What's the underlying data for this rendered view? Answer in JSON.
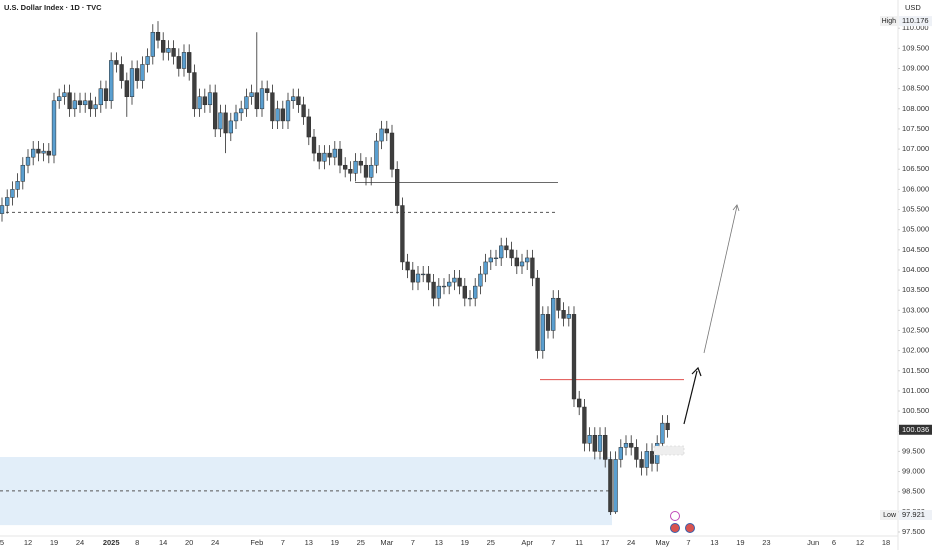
{
  "chart_data": {
    "type": "candlestick",
    "title": "U.S. Dollar Index · 1D · TVC",
    "currency": "USD",
    "categories": [
      "5",
      null,
      null,
      null,
      null,
      "12",
      null,
      null,
      null,
      null,
      "19",
      null,
      null,
      null,
      null,
      "24",
      null,
      null,
      null,
      null,
      null,
      "2025",
      null,
      null,
      null,
      null,
      "8",
      null,
      null,
      null,
      null,
      "14",
      null,
      null,
      null,
      null,
      "20",
      null,
      null,
      null,
      null,
      "24",
      null,
      null,
      null,
      null,
      null,
      null,
      null,
      "Feb",
      null,
      null,
      null,
      null,
      "7",
      null,
      null,
      null,
      null,
      "13",
      null,
      null,
      null,
      null,
      "19",
      null,
      null,
      null,
      null,
      "25",
      null,
      null,
      null,
      null,
      "Mar",
      null,
      null,
      null,
      null,
      "7",
      null,
      null,
      null,
      null,
      "13",
      null,
      null,
      null,
      null,
      "19",
      null,
      null,
      null,
      null,
      "25",
      null,
      null,
      null,
      null,
      null,
      null,
      "Apr",
      null,
      null,
      null,
      null,
      "7",
      null,
      null,
      null,
      null,
      "11",
      null,
      null,
      null,
      null,
      "17",
      null,
      null,
      null,
      null,
      "24",
      null,
      null,
      null,
      null,
      null,
      "May",
      null,
      null,
      null,
      null,
      "7",
      null,
      null,
      null,
      null,
      "13",
      null,
      null,
      null,
      null,
      "19",
      null,
      null,
      null,
      null,
      "23",
      null,
      null,
      null,
      null,
      null,
      null,
      null,
      null,
      "Jun",
      null,
      null,
      null,
      "6",
      null,
      null,
      null,
      null,
      "12",
      null,
      null,
      null,
      null,
      "18"
    ],
    "open": [
      105.4,
      105.6,
      105.8,
      106.0,
      106.2,
      106.6,
      106.8,
      107.0,
      106.9,
      106.95,
      106.85,
      108.2,
      108.3,
      108.4,
      108.0,
      108.2,
      108.1,
      108.2,
      108.0,
      108.1,
      108.5,
      108.2,
      109.2,
      109.1,
      108.7,
      108.3,
      109.0,
      108.7,
      109.1,
      109.3,
      109.9,
      109.7,
      109.4,
      109.5,
      109.3,
      109.0,
      109.4,
      108.9,
      108.0,
      108.3,
      108.1,
      108.4,
      107.5,
      107.9,
      107.4,
      107.7,
      107.9,
      108.0,
      108.3,
      108.4,
      108.0,
      108.5,
      108.4,
      107.7,
      108.0,
      107.7,
      108.2,
      108.3,
      108.1,
      107.8,
      107.3,
      106.9,
      106.7,
      106.9,
      106.8,
      107.0,
      106.6,
      106.5,
      106.4,
      106.7,
      106.6,
      106.3,
      106.6,
      107.2,
      107.5,
      107.4,
      106.5,
      105.6,
      104.2,
      104.0,
      103.7,
      103.9,
      103.9,
      103.7,
      103.3,
      103.6,
      103.6,
      103.7,
      103.8,
      103.6,
      103.3,
      103.3,
      103.6,
      103.9,
      104.2,
      104.3,
      104.3,
      104.6,
      104.5,
      104.3,
      104.1,
      104.2,
      104.3,
      103.8,
      102.0,
      102.9,
      102.5,
      103.3,
      103.0,
      102.8,
      102.9,
      100.8,
      100.6,
      99.7,
      99.9,
      99.5,
      99.9,
      99.3,
      98.0,
      99.3,
      99.6,
      99.7,
      99.6,
      99.3,
      99.1,
      99.5,
      99.2,
      99.7,
      100.2,
      null,
      null,
      null,
      null,
      null,
      null,
      null,
      null,
      null,
      null,
      null,
      null,
      null,
      null,
      null,
      null,
      null,
      null,
      null,
      null,
      null,
      null,
      null,
      null,
      null,
      null,
      null,
      null,
      null,
      null,
      null,
      null,
      null,
      null,
      null,
      null,
      null,
      null,
      null,
      null,
      null,
      null
    ],
    "high": [
      105.8,
      106.0,
      106.2,
      106.4,
      106.8,
      107.0,
      107.2,
      107.2,
      107.15,
      107.15,
      108.4,
      108.5,
      108.6,
      108.6,
      108.4,
      108.4,
      108.4,
      108.4,
      108.3,
      108.7,
      108.7,
      109.4,
      109.4,
      109.3,
      108.9,
      109.2,
      109.2,
      109.3,
      109.5,
      110.1,
      110.176,
      109.9,
      109.7,
      109.7,
      109.5,
      109.6,
      109.6,
      109.1,
      108.5,
      108.5,
      108.6,
      108.6,
      108.1,
      108.1,
      107.9,
      108.1,
      108.2,
      108.5,
      108.6,
      109.9,
      108.7,
      108.7,
      108.6,
      108.2,
      108.2,
      108.4,
      108.5,
      108.5,
      108.3,
      108.0,
      107.5,
      107.1,
      107.1,
      107.1,
      107.2,
      107.2,
      106.8,
      106.7,
      106.9,
      106.9,
      106.8,
      106.8,
      107.4,
      107.7,
      107.7,
      107.6,
      106.7,
      105.8,
      104.4,
      104.2,
      104.1,
      104.1,
      104.1,
      103.9,
      103.8,
      103.8,
      103.9,
      104.0,
      104.0,
      103.8,
      103.5,
      103.8,
      104.1,
      104.4,
      104.5,
      104.5,
      104.8,
      104.8,
      104.7,
      104.5,
      104.4,
      104.5,
      104.5,
      104.0,
      103.1,
      103.1,
      103.5,
      103.5,
      103.2,
      103.1,
      103.1,
      101.0,
      100.8,
      100.1,
      100.1,
      100.1,
      100.1,
      99.5,
      99.5,
      99.8,
      99.9,
      99.9,
      99.8,
      99.5,
      99.7,
      99.7,
      99.9,
      100.4,
      100.4,
      null,
      null,
      null,
      null,
      null,
      null,
      null,
      null,
      null,
      null,
      null,
      null,
      null,
      null,
      null,
      null,
      null,
      null,
      null,
      null,
      null,
      null,
      null,
      null,
      null,
      null,
      null,
      null,
      null,
      null,
      null,
      null,
      null,
      null,
      null,
      null,
      null,
      null,
      null,
      null,
      null,
      null
    ],
    "low": [
      105.2,
      105.4,
      105.6,
      105.8,
      106.0,
      106.4,
      106.6,
      106.7,
      106.7,
      106.65,
      106.65,
      108.0,
      108.1,
      107.8,
      107.8,
      107.9,
      107.9,
      107.8,
      107.8,
      107.9,
      108.0,
      108.0,
      108.9,
      108.5,
      107.8,
      108.1,
      108.5,
      108.5,
      108.9,
      109.1,
      109.5,
      109.2,
      109.2,
      109.1,
      108.8,
      108.8,
      108.7,
      107.8,
      107.8,
      107.9,
      107.9,
      107.3,
      107.3,
      106.9,
      107.2,
      107.5,
      107.7,
      107.8,
      108.1,
      107.8,
      107.8,
      108.2,
      107.5,
      107.5,
      107.5,
      107.5,
      108.0,
      107.9,
      107.6,
      107.1,
      106.7,
      106.5,
      106.5,
      106.6,
      106.6,
      106.4,
      106.3,
      106.2,
      106.2,
      106.4,
      106.1,
      106.1,
      106.4,
      107.0,
      107.2,
      106.3,
      105.4,
      104.0,
      103.8,
      103.5,
      103.5,
      103.7,
      103.5,
      103.1,
      103.1,
      103.4,
      103.4,
      103.5,
      103.4,
      103.1,
      103.1,
      103.1,
      103.4,
      103.7,
      104.0,
      104.1,
      104.1,
      104.3,
      104.1,
      103.9,
      103.9,
      104.0,
      103.6,
      101.8,
      101.8,
      102.3,
      102.3,
      102.8,
      102.6,
      102.6,
      100.6,
      100.4,
      99.5,
      99.5,
      99.3,
      99.3,
      99.1,
      97.921,
      97.95,
      99.1,
      99.4,
      99.4,
      99.1,
      98.9,
      98.9,
      99.0,
      99.0,
      99.5,
      99.84,
      null,
      null,
      null,
      null,
      null,
      null,
      null,
      null,
      null,
      null,
      null,
      null,
      null,
      null,
      null,
      null,
      null,
      null,
      null,
      null,
      null,
      null,
      null,
      null,
      null,
      null,
      null,
      null,
      null,
      null,
      null,
      null,
      null,
      null,
      null,
      null,
      null,
      null,
      null,
      null,
      null,
      null
    ],
    "close": [
      105.6,
      105.8,
      106.0,
      106.2,
      106.6,
      106.8,
      107.0,
      106.9,
      106.95,
      106.85,
      108.2,
      108.3,
      108.4,
      108.0,
      108.2,
      108.1,
      108.2,
      108.0,
      108.1,
      108.5,
      108.2,
      109.2,
      109.1,
      108.7,
      108.3,
      109.0,
      108.7,
      109.1,
      109.3,
      109.9,
      109.7,
      109.4,
      109.5,
      109.3,
      109.0,
      109.4,
      108.9,
      108.0,
      108.3,
      108.1,
      108.4,
      107.5,
      107.9,
      107.4,
      107.7,
      107.9,
      108.0,
      108.3,
      108.4,
      108.0,
      108.5,
      108.4,
      107.7,
      108.0,
      107.7,
      108.2,
      108.3,
      108.1,
      107.8,
      107.3,
      106.9,
      106.7,
      106.9,
      106.8,
      107.0,
      106.6,
      106.5,
      106.4,
      106.7,
      106.6,
      106.3,
      106.6,
      107.2,
      107.5,
      107.4,
      106.5,
      105.6,
      104.2,
      104.0,
      103.7,
      103.9,
      103.9,
      103.7,
      103.3,
      103.6,
      103.6,
      103.7,
      103.8,
      103.6,
      103.3,
      103.3,
      103.6,
      103.9,
      104.2,
      104.3,
      104.3,
      104.6,
      104.5,
      104.3,
      104.1,
      104.2,
      104.3,
      103.8,
      102.0,
      102.9,
      102.5,
      103.3,
      103.0,
      102.8,
      102.9,
      100.8,
      100.6,
      99.7,
      99.9,
      99.5,
      99.9,
      99.3,
      98.0,
      99.3,
      99.6,
      99.7,
      99.6,
      99.3,
      99.1,
      99.5,
      99.2,
      99.7,
      100.2,
      100.036,
      null,
      null,
      null,
      null,
      null,
      null,
      null,
      null,
      null,
      null,
      null,
      null,
      null,
      null,
      null,
      null,
      null,
      null,
      null,
      null,
      null,
      null,
      null,
      null,
      null,
      null,
      null,
      null,
      null,
      null,
      null,
      null,
      null,
      null,
      null,
      null,
      null,
      null,
      null,
      null,
      null,
      null
    ],
    "up_color": "#5a9fd0",
    "down_color": "#3e3e3e",
    "ylim": [
      97.4,
      110.7
    ],
    "yticks": [
      {
        "value": 97.5,
        "label": "97.500"
      },
      {
        "value": 98,
        "label": "98.000"
      },
      {
        "value": 98.5,
        "label": "98.500"
      },
      {
        "value": 99,
        "label": "99.000"
      },
      {
        "value": 99.5,
        "label": "99.500"
      },
      {
        "value": 100,
        "label": "100.000"
      },
      {
        "value": 100.5,
        "label": "100.500"
      },
      {
        "value": 101,
        "label": "101.000"
      },
      {
        "value": 101.5,
        "label": "101.500"
      },
      {
        "value": 102,
        "label": "102.000"
      },
      {
        "value": 102.5,
        "label": "102.500"
      },
      {
        "value": 103,
        "label": "103.000"
      },
      {
        "value": 103.5,
        "label": "103.500"
      },
      {
        "value": 104,
        "label": "104.000"
      },
      {
        "value": 104.5,
        "label": "104.500"
      },
      {
        "value": 105,
        "label": "105.000"
      },
      {
        "value": 105.5,
        "label": "105.500"
      },
      {
        "value": 106,
        "label": "106.000"
      },
      {
        "value": 106.5,
        "label": "106.500"
      },
      {
        "value": 107,
        "label": "107.000"
      },
      {
        "value": 107.5,
        "label": "107.500"
      },
      {
        "value": 108,
        "label": "108.000"
      },
      {
        "value": 108.5,
        "label": "108.500"
      },
      {
        "value": 109,
        "label": "109.000"
      },
      {
        "value": 109.5,
        "label": "109.500"
      },
      {
        "value": 110,
        "label": "110.000"
      }
    ],
    "high_marker": {
      "label": "High",
      "value": 110.176
    },
    "low_marker": {
      "label": "Low",
      "value": 97.921
    },
    "last_price": 100.036,
    "levels": [
      {
        "value": 106.17,
        "style": "solid",
        "color": "#555555"
      },
      {
        "value": 105.43,
        "style": "dashed",
        "color": "#555555"
      },
      {
        "value": 101.28,
        "style": "solid",
        "color": "#e0504e"
      },
      {
        "value": 98.52,
        "style": "dashed",
        "color": "#555555"
      }
    ],
    "zone": [
      97.67,
      99.36
    ],
    "zone_color": "#e2eef9"
  }
}
